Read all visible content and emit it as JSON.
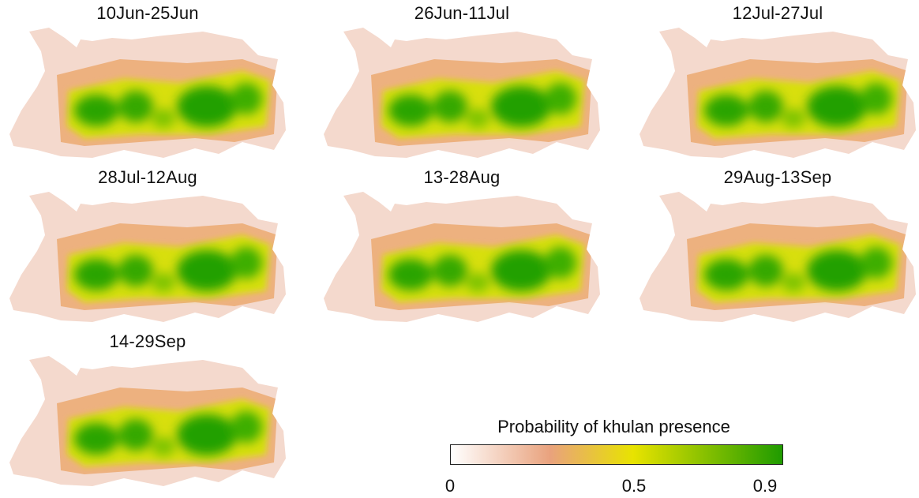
{
  "figure": {
    "panels": [
      {
        "title": "10Jun-25Jun"
      },
      {
        "title": "26Jun-11Jul"
      },
      {
        "title": "12Jul-27Jul"
      },
      {
        "title": "28Jul-12Aug"
      },
      {
        "title": "13-28Aug"
      },
      {
        "title": "29Aug-13Sep"
      },
      {
        "title": "14-29Sep"
      }
    ],
    "legend": {
      "title": "Probability of khulan presence",
      "ticks": [
        "0",
        "0.5",
        "0.9"
      ],
      "colors": [
        "#ffffff",
        "#e8a07e",
        "#e9e300",
        "#22a000"
      ]
    }
  }
}
